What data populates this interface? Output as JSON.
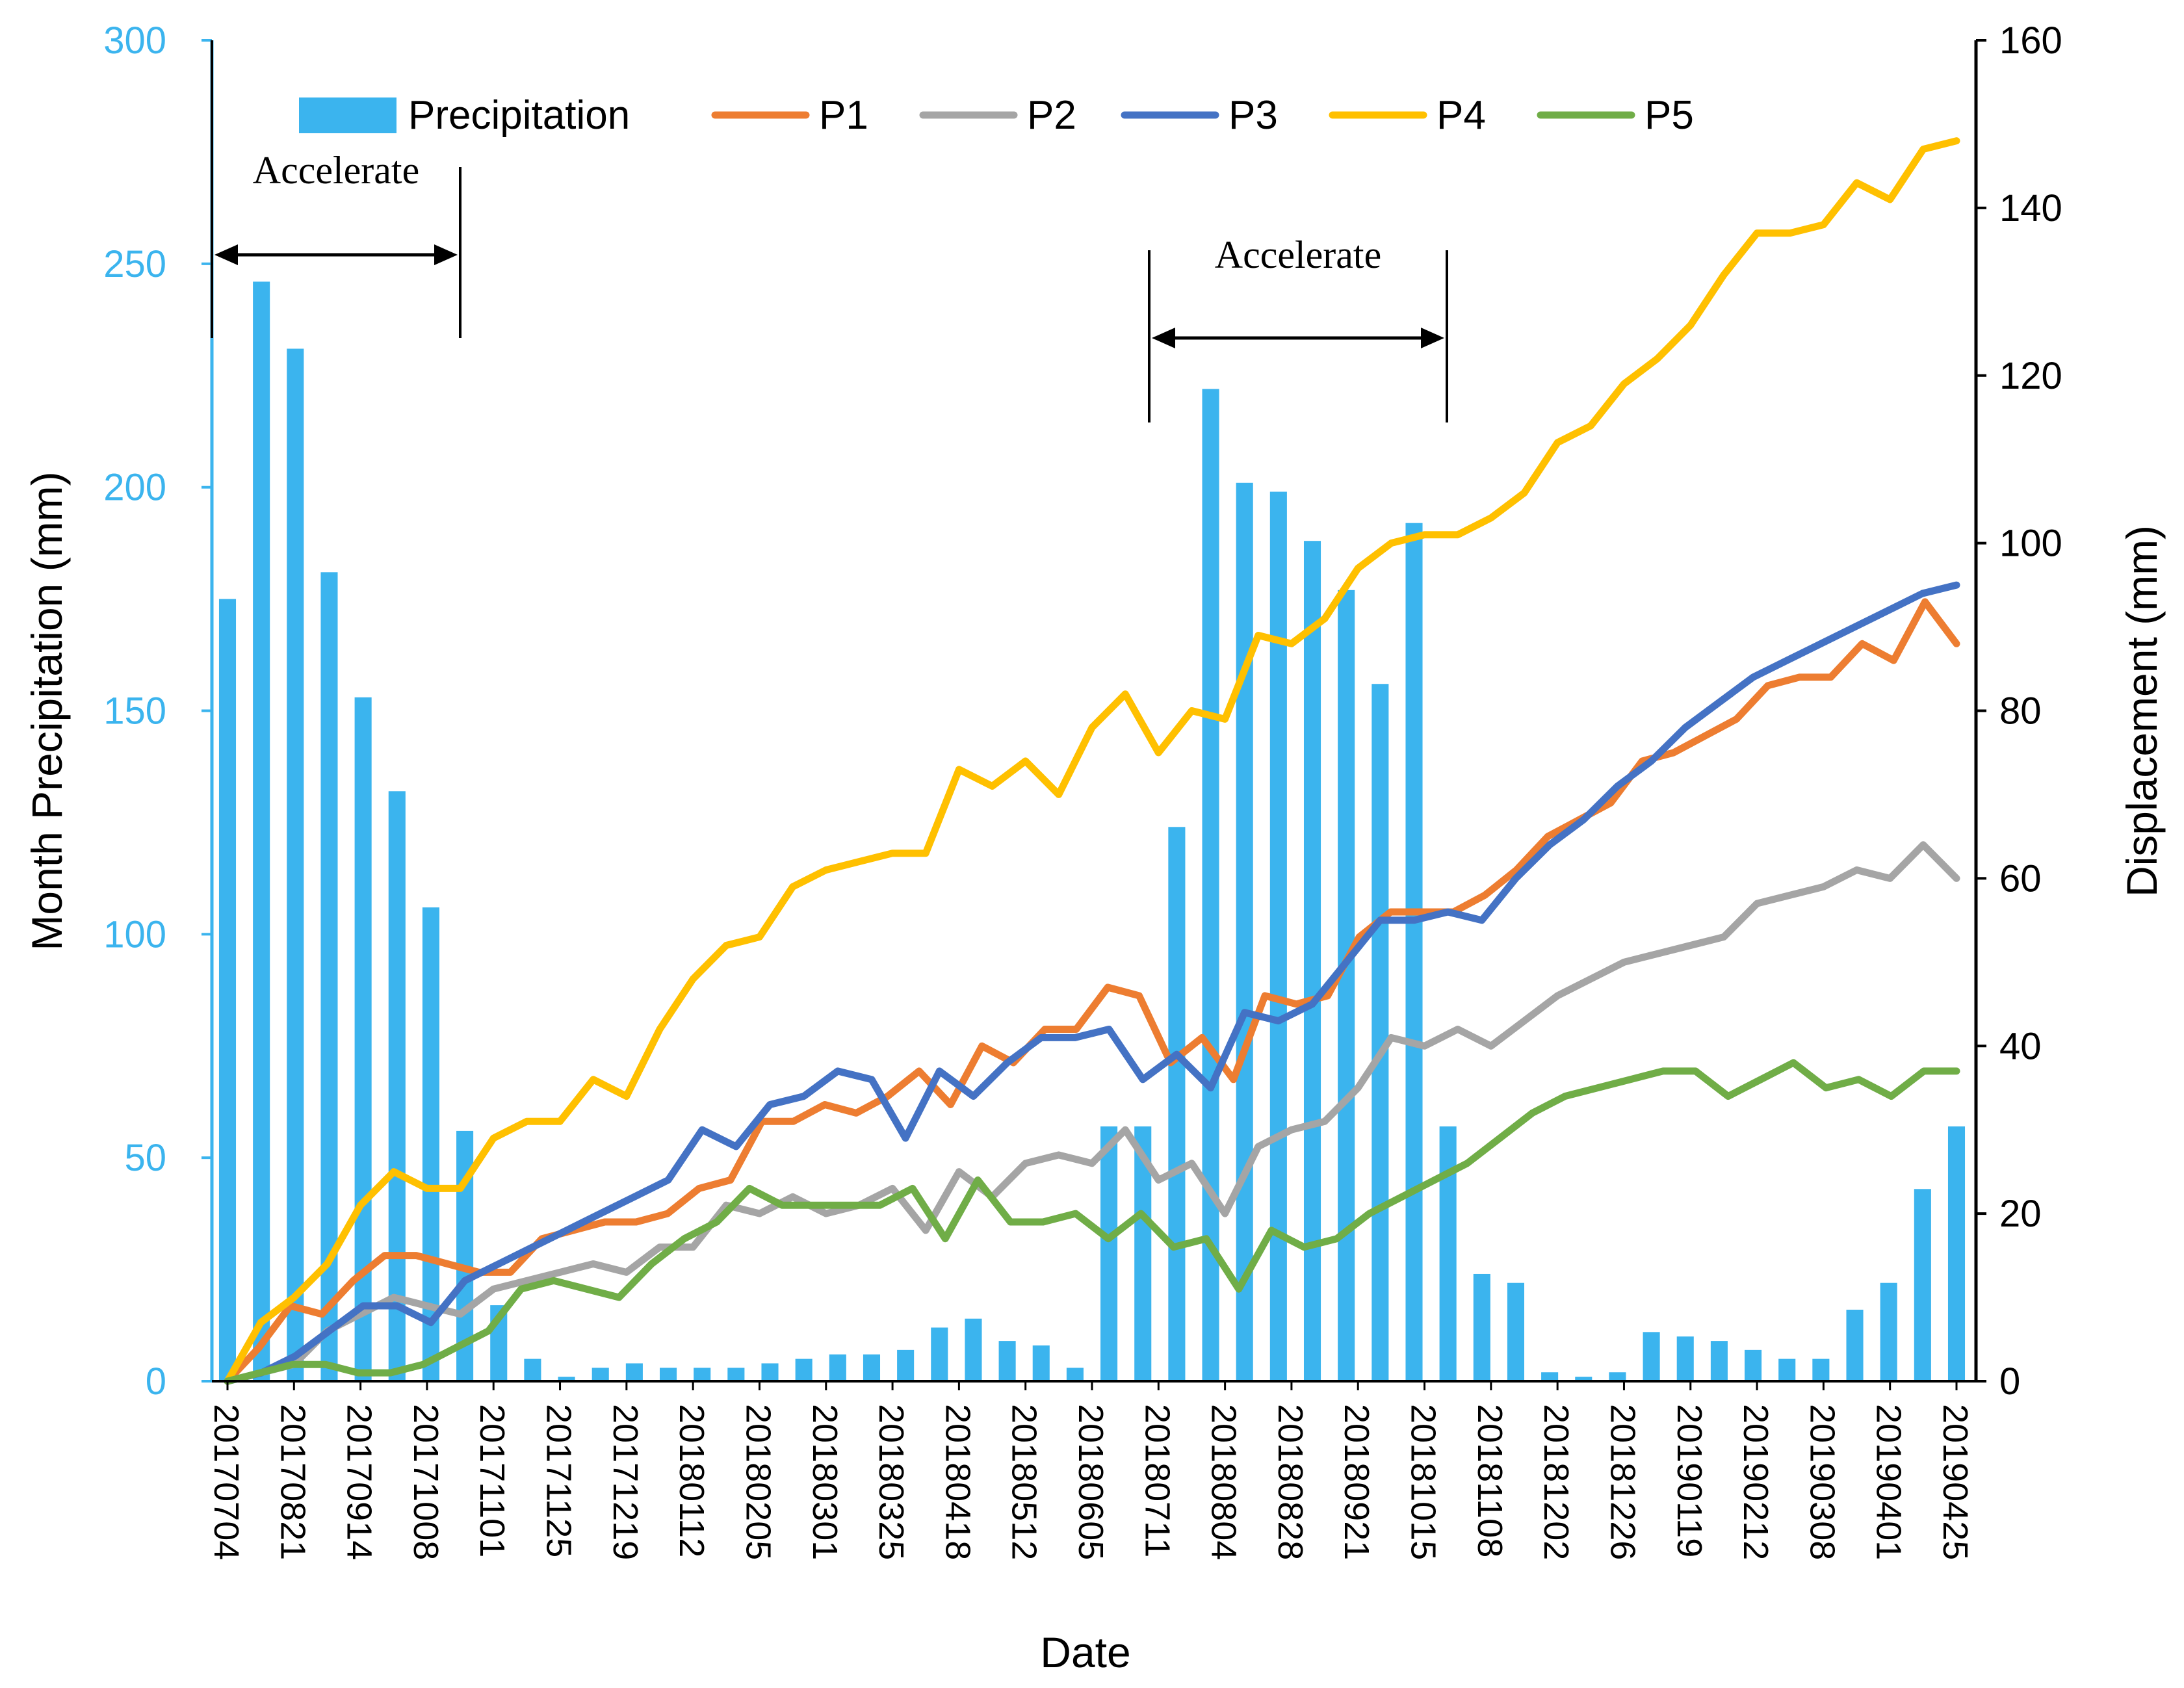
{
  "chart_data": {
    "type": "bar+line",
    "xlabel": "Date",
    "ylabel_left": "Month Precipitation (mm)",
    "ylabel_right": "Displacement (mm)",
    "ylim_left": [
      0,
      300
    ],
    "ylim_right": [
      0,
      160
    ],
    "yticks_left": [
      "0",
      "50",
      "100",
      "150",
      "200",
      "250",
      "300"
    ],
    "yticks_right": [
      "0",
      "20",
      "40",
      "60",
      "80",
      "100",
      "120",
      "140",
      "160"
    ],
    "grid": false,
    "legend_position": "top",
    "tick_labels": [
      "20170704",
      "20170821",
      "20170914",
      "20171008",
      "20171101",
      "20171125",
      "20171219",
      "20180112",
      "20180205",
      "20180301",
      "20180325",
      "20180418",
      "20180512",
      "20180605",
      "20180711",
      "20180804",
      "20180828",
      "20180921",
      "20181015",
      "20181108",
      "20181202",
      "20181226",
      "20190119",
      "20190212",
      "20190308",
      "20190401",
      "20190425"
    ],
    "precipitation": {
      "name": "Precipitation",
      "axis": "left",
      "color": "#3BB4EE",
      "values": [
        175,
        246,
        231,
        181,
        153,
        132,
        106,
        56,
        17,
        5,
        1,
        3,
        4,
        3,
        3,
        3,
        4,
        5,
        6,
        6,
        7,
        12,
        14,
        9,
        8,
        3,
        57,
        57,
        124,
        222,
        201,
        199,
        188,
        177,
        156,
        192,
        57,
        24,
        22,
        2,
        1,
        2,
        11,
        10,
        9,
        7,
        5,
        5,
        16,
        22,
        43,
        57
      ]
    },
    "series": [
      {
        "name": "P1",
        "color": "#ED7D31",
        "axis": "right",
        "values": [
          0,
          4,
          9,
          8,
          12,
          15,
          15,
          14,
          13,
          13,
          17,
          18,
          19,
          19,
          20,
          23,
          24,
          31,
          31,
          33,
          32,
          34,
          37,
          33,
          40,
          38,
          42,
          42,
          47,
          46,
          38,
          41,
          36,
          46,
          45,
          46,
          53,
          56,
          56,
          56,
          58,
          61,
          65,
          67,
          69,
          74,
          75,
          77,
          79,
          83,
          84,
          84,
          88,
          86,
          93,
          88
        ]
      },
      {
        "name": "P2",
        "color": "#A5A5A5",
        "axis": "right",
        "values": [
          0,
          1,
          2,
          6,
          8,
          10,
          9,
          8,
          11,
          12,
          13,
          14,
          13,
          16,
          16,
          21,
          20,
          22,
          20,
          21,
          23,
          18,
          25,
          22,
          26,
          27,
          26,
          30,
          24,
          26,
          20,
          28,
          30,
          31,
          35,
          41,
          40,
          42,
          40,
          43,
          46,
          48,
          50,
          51,
          52,
          53,
          57,
          58,
          59,
          61,
          60,
          64,
          60
        ]
      },
      {
        "name": "P3",
        "color": "#4472C4",
        "axis": "right",
        "values": [
          0,
          1,
          3,
          6,
          9,
          9,
          7,
          12,
          14,
          16,
          18,
          20,
          22,
          24,
          30,
          28,
          33,
          34,
          37,
          36,
          29,
          37,
          34,
          38,
          41,
          41,
          42,
          36,
          39,
          35,
          44,
          43,
          45,
          50,
          55,
          55,
          56,
          55,
          60,
          64,
          67,
          71,
          74,
          78,
          81,
          84,
          86,
          88,
          90,
          92,
          94,
          95
        ]
      },
      {
        "name": "P4",
        "color": "#FFC000",
        "axis": "right",
        "values": [
          0,
          7,
          10,
          14,
          21,
          25,
          23,
          23,
          29,
          31,
          31,
          36,
          34,
          42,
          48,
          52,
          53,
          59,
          61,
          62,
          63,
          63,
          73,
          71,
          74,
          70,
          78,
          82,
          75,
          80,
          79,
          89,
          88,
          91,
          97,
          100,
          101,
          101,
          103,
          106,
          112,
          114,
          119,
          122,
          126,
          132,
          137,
          137,
          138,
          143,
          141,
          147,
          148
        ]
      },
      {
        "name": "P5",
        "color": "#70AD47",
        "axis": "right",
        "values": [
          0,
          1,
          2,
          2,
          1,
          1,
          2,
          4,
          6,
          11,
          12,
          11,
          10,
          14,
          17,
          19,
          23,
          21,
          21,
          21,
          21,
          23,
          17,
          24,
          19,
          19,
          20,
          17,
          20,
          16,
          17,
          11,
          18,
          16,
          17,
          20,
          22,
          24,
          26,
          29,
          32,
          34,
          35,
          36,
          37,
          37,
          34,
          36,
          38,
          35,
          36,
          34,
          37,
          37
        ]
      }
    ],
    "annotations": [
      {
        "text": "Accelerate",
        "from_tick": 0,
        "to_tick": 7
      },
      {
        "text": "Accelerate",
        "from_tick": 28,
        "to_tick": 37
      }
    ]
  }
}
